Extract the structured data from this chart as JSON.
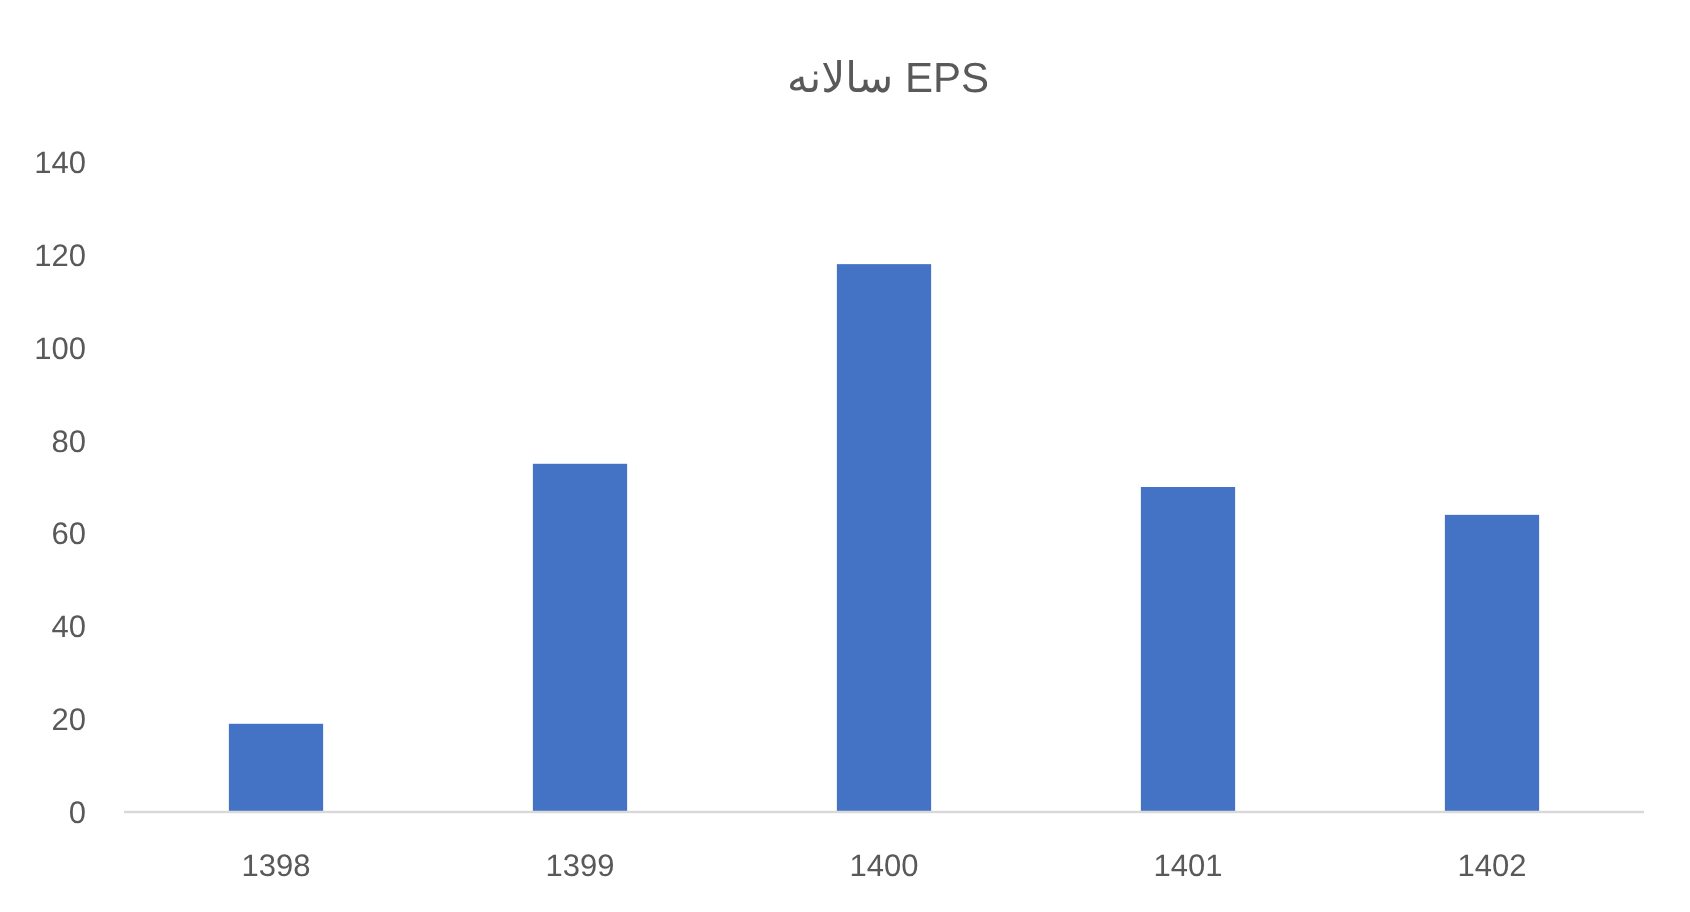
{
  "chart_data": {
    "type": "bar",
    "title": "EPS سالانه",
    "categories": [
      "1398",
      "1399",
      "1400",
      "1401",
      "1402"
    ],
    "values": [
      19,
      75,
      118,
      70,
      64
    ],
    "color": "#4472c4",
    "ylim": [
      0,
      140
    ],
    "yticks": [
      0,
      20,
      40,
      60,
      80,
      100,
      120,
      140
    ]
  }
}
